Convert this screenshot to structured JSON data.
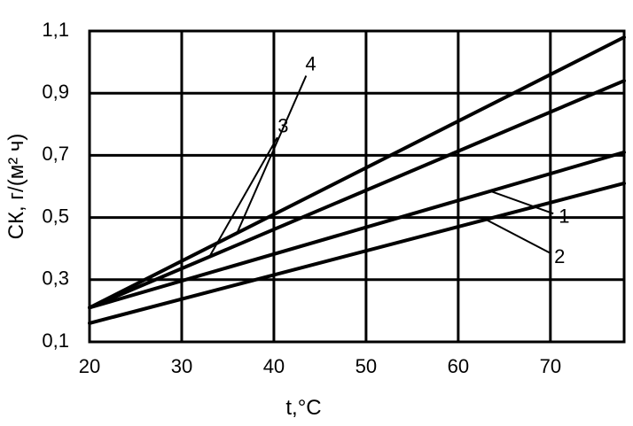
{
  "chart_data": {
    "type": "line",
    "xlabel": "t,°C",
    "ylabel": "СК, г/(м² ч)",
    "xlim": [
      20,
      78
    ],
    "ylim": [
      0.1,
      1.1
    ],
    "x_ticks": [
      20,
      30,
      40,
      50,
      60,
      70
    ],
    "x_tick_labels": [
      "20",
      "30",
      "40",
      "50",
      "60",
      "70"
    ],
    "y_ticks": [
      0.1,
      0.3,
      0.5,
      0.7,
      0.9,
      1.1
    ],
    "y_tick_labels": [
      "0,1",
      "0,3",
      "0,5",
      "0,7",
      "0,9",
      "1,1"
    ],
    "grid": true,
    "series": [
      {
        "name": "1",
        "x": [
          20,
          78
        ],
        "y": [
          0.21,
          0.71
        ],
        "label_x": 71.5,
        "label_y": 0.5
      },
      {
        "name": "2",
        "x": [
          20,
          78
        ],
        "y": [
          0.16,
          0.61
        ],
        "label_x": 71,
        "label_y": 0.37
      },
      {
        "name": "3",
        "x": [
          20,
          78
        ],
        "y": [
          0.21,
          0.94
        ],
        "label_x": 41,
        "label_y": 0.79
      },
      {
        "name": "4",
        "x": [
          20,
          78
        ],
        "y": [
          0.21,
          1.08
        ],
        "label_x": 44,
        "label_y": 0.99
      }
    ]
  }
}
